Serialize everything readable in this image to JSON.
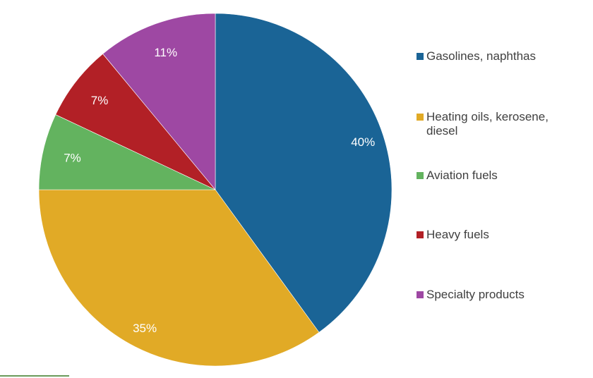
{
  "chart_data": {
    "type": "pie",
    "start_angle": "top",
    "direction": "clockwise",
    "legend_position": "right",
    "slices": [
      {
        "label": "Gasolines, naphthas",
        "value": 40,
        "data_label": "40%",
        "color": "#1a6496"
      },
      {
        "label": "Heating oils, kerosene, diesel",
        "value": 35,
        "data_label": "35%",
        "color": "#e1aa26"
      },
      {
        "label": "Aviation fuels",
        "value": 7,
        "data_label": "7%",
        "color": "#63b35f"
      },
      {
        "label": "Heavy fuels",
        "value": 7,
        "data_label": "7%",
        "color": "#b22026"
      },
      {
        "label": "Specialty products",
        "value": 11,
        "data_label": "11%",
        "color": "#9e48a3"
      }
    ]
  }
}
